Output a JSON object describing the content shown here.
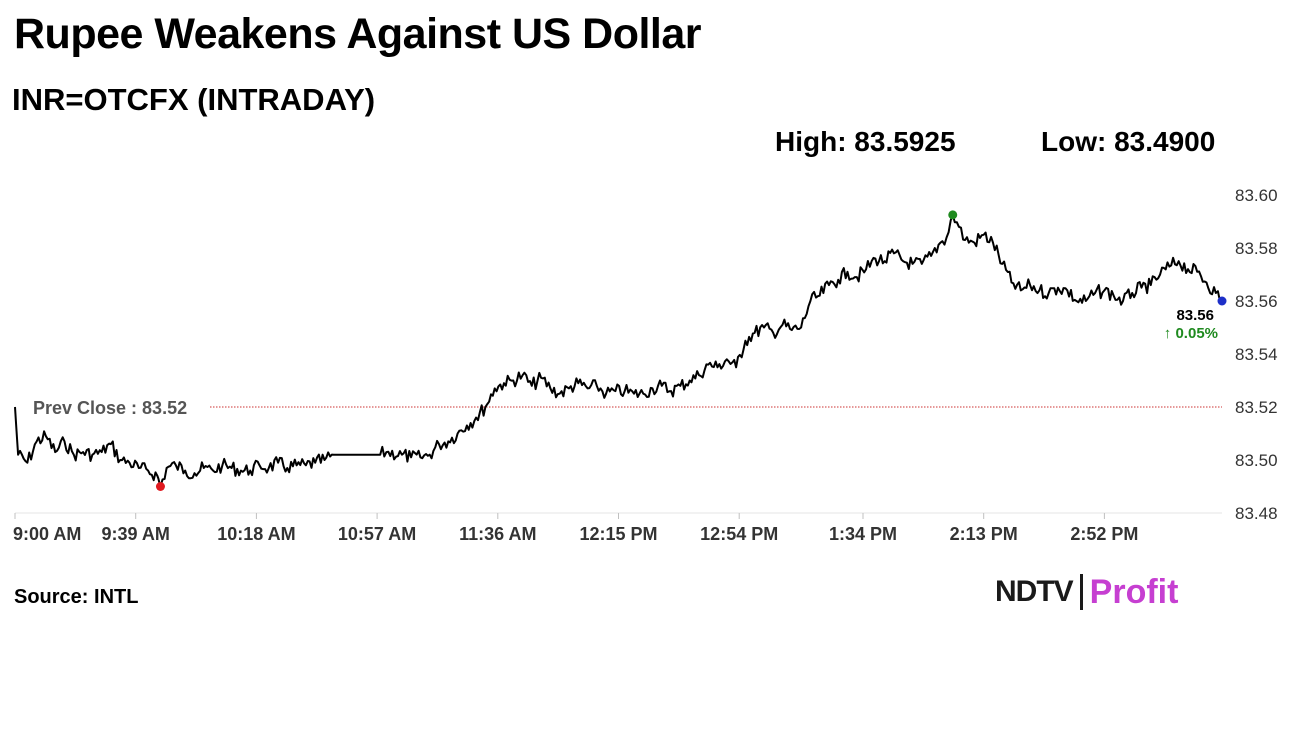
{
  "header": {
    "title": "Rupee Weakens Against US Dollar",
    "subtitle": "INR=OTCFX (INTRADAY)",
    "high_label": "High: 83.5925",
    "low_label": "Low: 83.4900"
  },
  "footer": {
    "source": "Source: INTL",
    "logo_left": "NDTV",
    "logo_right": "Profit"
  },
  "colors": {
    "line": "#000000",
    "prev_close": "#cc3333",
    "low_marker": "#e0191f",
    "high_marker": "#1f8a1f",
    "last_marker": "#1d2fc8",
    "change_text": "#1f8a1f",
    "axis_text": "#333333"
  },
  "chart_data": {
    "type": "line",
    "title": "Rupee Weakens Against US Dollar",
    "subtitle": "INR=OTCFX (INTRADAY)",
    "x_tick_labels": [
      "9:00 AM",
      "9:39 AM",
      "10:18 AM",
      "10:57 AM",
      "11:36 AM",
      "12:15 PM",
      "12:54 PM",
      "1:34 PM",
      "2:13 PM",
      "2:52 PM"
    ],
    "x_range": [
      "9:00 AM",
      "3:30 PM"
    ],
    "y_ticks": [
      83.48,
      83.5,
      83.52,
      83.54,
      83.56,
      83.58,
      83.6
    ],
    "y_tick_labels": [
      "83.48",
      "83.50",
      "83.52",
      "83.54",
      "83.56",
      "83.58",
      "83.60"
    ],
    "ylim": [
      83.48,
      83.6
    ],
    "y_axis_side": "right",
    "grid": false,
    "prev_close": {
      "value": 83.52,
      "label": "Prev Close : 83.52"
    },
    "high": {
      "time": "2:03 PM",
      "value": 83.5925
    },
    "low": {
      "time": "9:47 AM",
      "value": 83.49
    },
    "last": {
      "time": "3:30 PM",
      "value": 83.56,
      "label": "83.56",
      "change_label": "↑ 0.05%"
    },
    "series": [
      {
        "values": [
          [
            "9:00 AM",
            83.52
          ],
          [
            "9:01 AM",
            83.502
          ],
          [
            "9:04 AM",
            83.499
          ],
          [
            "9:07 AM",
            83.507
          ],
          [
            "9:10 AM",
            83.509
          ],
          [
            "9:13 AM",
            83.503
          ],
          [
            "9:16 AM",
            83.507
          ],
          [
            "9:19 AM",
            83.502
          ],
          [
            "9:22 AM",
            83.503
          ],
          [
            "9:25 AM",
            83.502
          ],
          [
            "9:28 AM",
            83.503
          ],
          [
            "9:31 AM",
            83.506
          ],
          [
            "9:34 AM",
            83.5
          ],
          [
            "9:37 AM",
            83.499
          ],
          [
            "9:40 AM",
            83.497
          ],
          [
            "9:43 AM",
            83.496
          ],
          [
            "9:46 AM",
            83.494
          ],
          [
            "9:47 AM",
            83.49
          ],
          [
            "9:49 AM",
            83.497
          ],
          [
            "9:52 AM",
            83.498
          ],
          [
            "9:55 AM",
            83.496
          ],
          [
            "9:58 AM",
            83.495
          ],
          [
            "10:01 AM",
            83.497
          ],
          [
            "10:04 AM",
            83.496
          ],
          [
            "10:07 AM",
            83.498
          ],
          [
            "10:10 AM",
            83.497
          ],
          [
            "10:13 AM",
            83.496
          ],
          [
            "10:16 AM",
            83.496
          ],
          [
            "10:19 AM",
            83.498
          ],
          [
            "10:22 AM",
            83.497
          ],
          [
            "10:25 AM",
            83.499
          ],
          [
            "10:28 AM",
            83.497
          ],
          [
            "10:31 AM",
            83.498
          ],
          [
            "10:34 AM",
            83.498
          ],
          [
            "10:37 AM",
            83.499
          ],
          [
            "10:40 AM",
            83.5
          ],
          [
            "10:43 AM",
            83.502
          ],
          [
            "10:58 AM",
            83.502
          ],
          [
            "11:00 AM",
            83.503
          ],
          [
            "11:05 AM",
            83.502
          ],
          [
            "11:08 AM",
            83.501
          ],
          [
            "11:11 AM",
            83.501
          ],
          [
            "11:14 AM",
            83.502
          ],
          [
            "11:17 AM",
            83.506
          ],
          [
            "11:20 AM",
            83.507
          ],
          [
            "11:23 AM",
            83.51
          ],
          [
            "11:26 AM",
            83.513
          ],
          [
            "11:29 AM",
            83.516
          ],
          [
            "11:32 AM",
            83.52
          ],
          [
            "11:35 AM",
            83.527
          ],
          [
            "11:38 AM",
            83.529
          ],
          [
            "11:41 AM",
            83.53
          ],
          [
            "11:44 AM",
            83.532
          ],
          [
            "11:47 AM",
            83.528
          ],
          [
            "11:50 AM",
            83.531
          ],
          [
            "11:53 AM",
            83.527
          ],
          [
            "11:56 AM",
            83.525
          ],
          [
            "11:59 AM",
            83.527
          ],
          [
            "12:02 PM",
            83.529
          ],
          [
            "12:05 PM",
            83.527
          ],
          [
            "12:08 PM",
            83.528
          ],
          [
            "12:11 PM",
            83.525
          ],
          [
            "12:14 PM",
            83.526
          ],
          [
            "12:17 PM",
            83.526
          ],
          [
            "12:20 PM",
            83.525
          ],
          [
            "12:23 PM",
            83.525
          ],
          [
            "12:26 PM",
            83.527
          ],
          [
            "12:29 PM",
            83.528
          ],
          [
            "12:32 PM",
            83.526
          ],
          [
            "12:35 PM",
            83.528
          ],
          [
            "12:38 PM",
            83.53
          ],
          [
            "12:41 PM",
            83.532
          ],
          [
            "12:44 PM",
            83.536
          ],
          [
            "12:47 PM",
            83.535
          ],
          [
            "12:50 PM",
            83.538
          ],
          [
            "12:53 PM",
            83.535
          ],
          [
            "12:56 PM",
            83.545
          ],
          [
            "12:59 PM",
            83.548
          ],
          [
            "1:02 PM",
            83.55
          ],
          [
            "1:05 PM",
            83.548
          ],
          [
            "1:08 PM",
            83.551
          ],
          [
            "1:11 PM",
            83.549
          ],
          [
            "1:14 PM",
            83.55
          ],
          [
            "1:17 PM",
            83.56
          ],
          [
            "1:20 PM",
            83.562
          ],
          [
            "1:23 PM",
            83.566
          ],
          [
            "1:26 PM",
            83.568
          ],
          [
            "1:29 PM",
            83.571
          ],
          [
            "1:32 PM",
            83.569
          ],
          [
            "1:35 PM",
            83.572
          ],
          [
            "1:38 PM",
            83.576
          ],
          [
            "1:41 PM",
            83.575
          ],
          [
            "1:44 PM",
            83.578
          ],
          [
            "1:47 PM",
            83.575
          ],
          [
            "1:50 PM",
            83.574
          ],
          [
            "1:53 PM",
            83.574
          ],
          [
            "1:56 PM",
            83.577
          ],
          [
            "1:59 PM",
            83.582
          ],
          [
            "2:01 PM",
            83.584
          ],
          [
            "2:03 PM",
            83.5925
          ],
          [
            "2:05 PM",
            83.588
          ],
          [
            "2:07 PM",
            83.583
          ],
          [
            "2:10 PM",
            83.582
          ],
          [
            "2:13 PM",
            83.585
          ],
          [
            "2:16 PM",
            83.582
          ],
          [
            "2:19 PM",
            83.574
          ],
          [
            "2:22 PM",
            83.567
          ],
          [
            "2:25 PM",
            83.564
          ],
          [
            "2:28 PM",
            83.566
          ],
          [
            "2:31 PM",
            83.564
          ],
          [
            "2:34 PM",
            83.563
          ],
          [
            "2:37 PM",
            83.565
          ],
          [
            "2:40 PM",
            83.564
          ],
          [
            "2:43 PM",
            83.56
          ],
          [
            "2:46 PM",
            83.56
          ],
          [
            "2:49 PM",
            83.563
          ],
          [
            "2:52 PM",
            83.564
          ],
          [
            "2:55 PM",
            83.562
          ],
          [
            "2:58 PM",
            83.56
          ],
          [
            "3:01 PM",
            83.563
          ],
          [
            "3:04 PM",
            83.565
          ],
          [
            "3:07 PM",
            83.566
          ],
          [
            "3:10 PM",
            83.57
          ],
          [
            "3:13 PM",
            83.573
          ],
          [
            "3:16 PM",
            83.575
          ],
          [
            "3:19 PM",
            83.572
          ],
          [
            "3:22 PM",
            83.571
          ],
          [
            "3:25 PM",
            83.567
          ],
          [
            "3:28 PM",
            83.563
          ],
          [
            "3:30 PM",
            83.56
          ]
        ]
      }
    ]
  }
}
